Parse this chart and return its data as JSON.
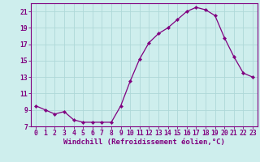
{
  "x": [
    0,
    1,
    2,
    3,
    4,
    5,
    6,
    7,
    8,
    9,
    10,
    11,
    12,
    13,
    14,
    15,
    16,
    17,
    18,
    19,
    20,
    21,
    22,
    23
  ],
  "y": [
    9.5,
    9.0,
    8.5,
    8.8,
    7.8,
    7.5,
    7.5,
    7.5,
    7.5,
    9.5,
    12.5,
    15.2,
    17.2,
    18.3,
    19.0,
    20.0,
    21.0,
    21.5,
    21.2,
    20.5,
    17.8,
    15.5,
    13.5,
    13.0
  ],
  "line_color": "#800080",
  "marker": "D",
  "marker_size": 2.2,
  "bg_color": "#ceeeed",
  "grid_color": "#aed8d8",
  "xlabel": "Windchill (Refroidissement éolien,°C)",
  "xlabel_fontsize": 6.5,
  "tick_fontsize": 5.8,
  "ylim": [
    7,
    22
  ],
  "yticks": [
    7,
    9,
    11,
    13,
    15,
    17,
    19,
    21
  ],
  "xlim": [
    -0.5,
    23.5
  ],
  "xticks": [
    0,
    1,
    2,
    3,
    4,
    5,
    6,
    7,
    8,
    9,
    10,
    11,
    12,
    13,
    14,
    15,
    16,
    17,
    18,
    19,
    20,
    21,
    22,
    23
  ],
  "spine_color": "#800080",
  "linewidth": 0.9
}
